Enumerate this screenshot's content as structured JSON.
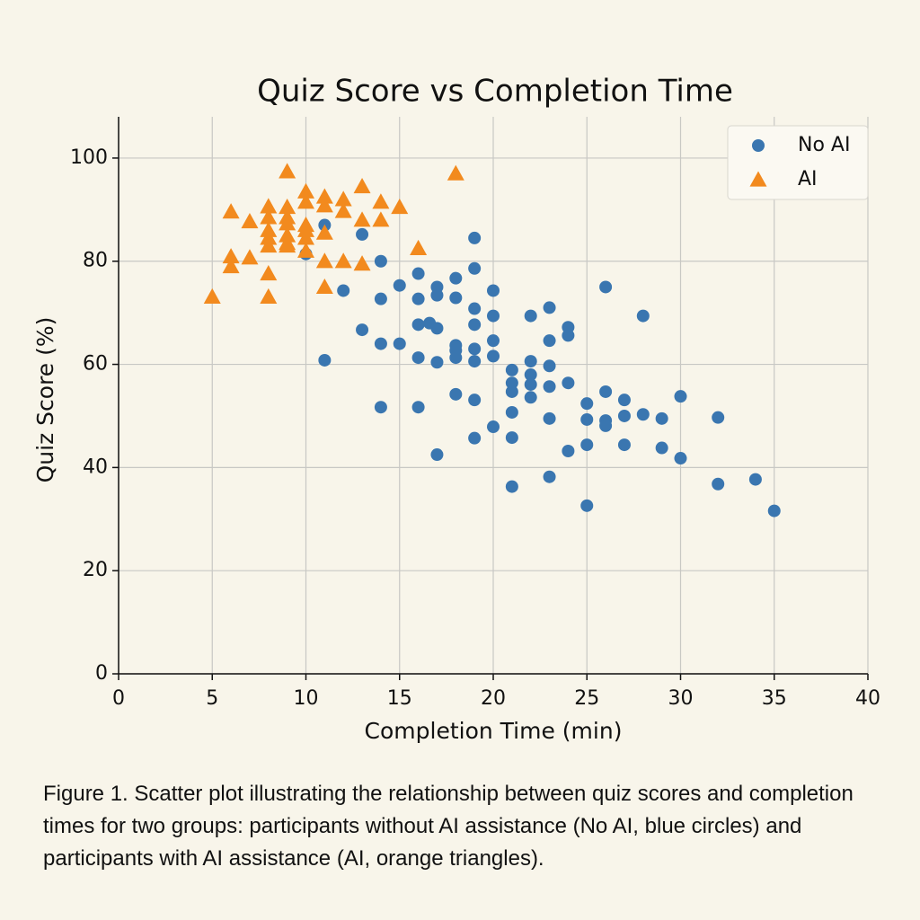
{
  "chart_data": {
    "type": "scatter",
    "title": "Quiz Score vs Completion Time",
    "x_label": "Completion Time (min)",
    "y_label": "Quiz Score (%)",
    "xlim": [
      0,
      40
    ],
    "ylim": [
      0,
      108
    ],
    "xticks": [
      0,
      5,
      10,
      15,
      20,
      25,
      30,
      35,
      40
    ],
    "yticks": [
      0,
      20,
      40,
      60,
      80,
      100
    ],
    "grid": true,
    "legend": "upper right",
    "series": [
      {
        "name": "No AI",
        "color": "#3a76b0",
        "marker": "circle",
        "x": [
          10,
          11,
          13,
          12,
          11,
          13,
          14,
          14,
          14,
          14,
          15,
          15,
          16,
          16,
          16,
          16,
          16,
          16.6,
          17,
          17,
          17,
          17,
          17,
          18,
          18,
          18,
          18,
          18,
          18,
          19,
          19,
          19,
          19,
          19,
          19,
          19,
          19,
          20,
          20,
          20,
          20,
          20,
          21,
          21,
          21,
          21,
          21,
          21,
          22,
          22,
          22,
          22,
          22,
          23,
          23,
          23,
          23,
          23,
          23,
          24,
          24,
          24,
          24,
          25,
          25,
          25,
          25,
          26,
          26,
          26,
          26,
          27,
          27,
          27,
          28,
          28,
          29,
          29,
          30,
          30,
          32,
          32,
          34,
          35
        ],
        "values": [
          81.4,
          87,
          85.2,
          74.3,
          60.8,
          66.7,
          80,
          72.7,
          64,
          51.7,
          75.3,
          64,
          77.6,
          72.7,
          67.7,
          61.3,
          51.7,
          68,
          75,
          73.4,
          67,
          60.4,
          42.5,
          76.7,
          72.9,
          63.7,
          62.7,
          61.3,
          54.2,
          84.5,
          78.6,
          70.8,
          67.7,
          63,
          60.6,
          53.1,
          45.7,
          74.3,
          69.4,
          64.6,
          61.6,
          47.9,
          58.9,
          56.4,
          54.7,
          50.7,
          45.8,
          36.3,
          69.4,
          60.6,
          58,
          56.1,
          53.6,
          71,
          64.6,
          59.7,
          55.7,
          49.5,
          38.2,
          67.2,
          65.6,
          56.4,
          43.2,
          52.4,
          49.3,
          44.4,
          32.6,
          75,
          54.7,
          49.1,
          48.1,
          53.1,
          50,
          44.4,
          69.4,
          50.3,
          49.5,
          43.8,
          53.8,
          41.8,
          49.7,
          36.8,
          37.7,
          31.6
        ]
      },
      {
        "name": "AI",
        "color": "#f28a1e",
        "marker": "triangle",
        "x": [
          5,
          6,
          6,
          6,
          7,
          7,
          8,
          8,
          8,
          8,
          8,
          8,
          8,
          9,
          9,
          9,
          9,
          9,
          9,
          9,
          10,
          10,
          10,
          10,
          10,
          10,
          11,
          11,
          11,
          11,
          11,
          12,
          12,
          12,
          13,
          13,
          13,
          14,
          14,
          15,
          16,
          18
        ],
        "values": [
          73.1,
          89.6,
          80.9,
          79,
          87.7,
          80.7,
          90.6,
          88.5,
          86,
          84.5,
          83,
          77.6,
          73.1,
          97.4,
          90.5,
          88.5,
          87.3,
          85,
          83.5,
          83,
          93.5,
          91.5,
          87,
          86,
          84.5,
          82,
          92.5,
          90.8,
          85.5,
          80,
          75,
          92,
          89.7,
          80,
          94.5,
          88,
          79.5,
          91.5,
          88,
          90.5,
          82.5,
          97
        ]
      }
    ],
    "caption": "Figure 1. Scatter plot illustrating the relationship between quiz scores and completion times for two groups: participants without AI assistance (No AI, blue circles) and participants with AI assistance (AI, orange triangles)."
  }
}
